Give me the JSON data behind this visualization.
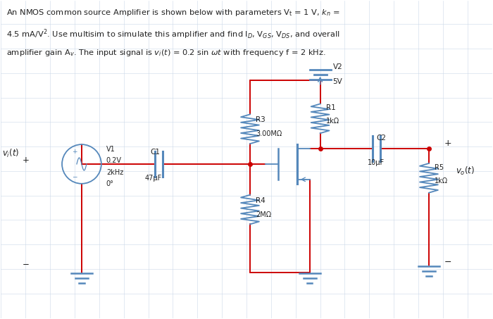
{
  "bg_color": "#ffffff",
  "wire_color": "#cc0000",
  "component_color": "#5588bb",
  "text_color": "#222222",
  "grid_color": "#ccd8e8",
  "title_lines": [
    "An NMOS common source Amplifier is shown below with parameters V₁ = 1 V, kₙ =",
    "4.5 mA/V². Use multisim to simulate this amplifier and find Iᴅ, Vᵊₛ, Vᴅₛ, and overall",
    "amplifier gain Aᵥ. The input signal is vᵢ(t) = 0.2 sin ωt with frequency f = 2 kHz."
  ]
}
